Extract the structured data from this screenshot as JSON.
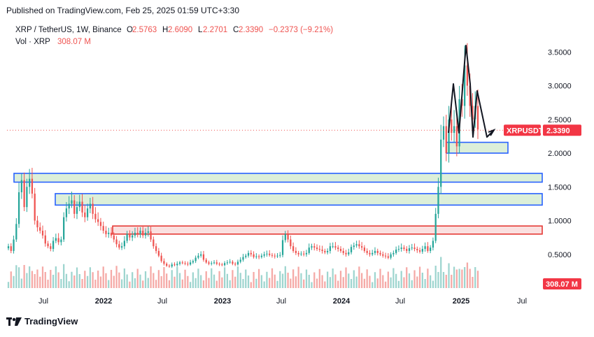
{
  "header": {
    "published": "Published on TradingView.com, Feb 25, 2025 01:59 UTC+3:30"
  },
  "legend": {
    "symbol": "XRP / TetherUS, 1W, Binance",
    "o_label": "O",
    "o_value": "2.5763",
    "h_label": "H",
    "h_value": "2.6090",
    "l_label": "L",
    "l_value": "2.2701",
    "c_label": "C",
    "c_value": "2.3390",
    "change": "−0.2373 (−9.21%)",
    "vol_label": "Vol · XRP",
    "vol_value": "308.07 M"
  },
  "footer": {
    "brand": "TradingView"
  },
  "colors": {
    "up": "#26a69a",
    "down": "#ef5350",
    "vol_up": "#9ed5cf",
    "vol_down": "#f5a9a6",
    "zone_fill": "#d6ecd2",
    "zone_border": "#2962ff",
    "red_zone_fill": "#f9dada",
    "red_zone_border": "#e53935",
    "price_label_bg": "#f23645"
  },
  "chart_data": {
    "type": "candlestick",
    "y_axis_ticks": [
      "3.5000",
      "3.0000",
      "2.5000",
      "2.0000",
      "1.5000",
      "1.0000",
      "0.5000"
    ],
    "x_axis_ticks": [
      "Jul",
      "2022",
      "Jul",
      "2023",
      "Jul",
      "2024",
      "Jul",
      "2025",
      "Jul"
    ],
    "ylim": [
      0,
      3.9
    ],
    "last_price": {
      "symbol": "XRPUSDT",
      "value": "2.3390"
    },
    "last_volume": "308.07 M",
    "support_zones": [
      {
        "low": 1.57,
        "high": 1.7,
        "style": "green"
      },
      {
        "low": 1.23,
        "high": 1.4,
        "style": "green"
      },
      {
        "low": 2.0,
        "high": 2.16,
        "style": "green"
      },
      {
        "low": 0.8,
        "high": 0.92,
        "style": "red"
      }
    ],
    "price_path_weekly_close": [
      0.62,
      0.55,
      0.72,
      0.95,
      1.42,
      1.6,
      1.2,
      1.5,
      1.62,
      1.4,
      1.0,
      0.9,
      0.85,
      0.78,
      0.66,
      0.62,
      0.58,
      0.7,
      0.74,
      0.68,
      0.72,
      1.05,
      1.18,
      1.25,
      1.3,
      1.1,
      1.2,
      1.28,
      1.12,
      1.05,
      1.18,
      1.25,
      1.1,
      1.02,
      0.98,
      0.92,
      0.85,
      0.8,
      0.82,
      0.78,
      0.72,
      0.65,
      0.6,
      0.62,
      0.7,
      0.8,
      0.75,
      0.78,
      0.82,
      0.8,
      0.85,
      0.78,
      0.82,
      0.84,
      0.72,
      0.62,
      0.55,
      0.48,
      0.4,
      0.36,
      0.33,
      0.32,
      0.35,
      0.34,
      0.36,
      0.38,
      0.37,
      0.36,
      0.35,
      0.38,
      0.4,
      0.45,
      0.48,
      0.5,
      0.42,
      0.38,
      0.36,
      0.37,
      0.38,
      0.36,
      0.35,
      0.34,
      0.37,
      0.38,
      0.39,
      0.36,
      0.35,
      0.39,
      0.42,
      0.46,
      0.48,
      0.52,
      0.5,
      0.46,
      0.47,
      0.46,
      0.48,
      0.5,
      0.51,
      0.49,
      0.48,
      0.47,
      0.48,
      0.49,
      0.71,
      0.8,
      0.72,
      0.62,
      0.55,
      0.52,
      0.5,
      0.51,
      0.5,
      0.52,
      0.6,
      0.62,
      0.6,
      0.58,
      0.57,
      0.55,
      0.53,
      0.55,
      0.62,
      0.62,
      0.6,
      0.58,
      0.55,
      0.52,
      0.5,
      0.53,
      0.61,
      0.63,
      0.65,
      0.62,
      0.6,
      0.55,
      0.52,
      0.5,
      0.52,
      0.55,
      0.52,
      0.5,
      0.48,
      0.47,
      0.45,
      0.5,
      0.52,
      0.57,
      0.58,
      0.6,
      0.58,
      0.55,
      0.59,
      0.6,
      0.58,
      0.56,
      0.54,
      0.58,
      0.62,
      0.55,
      0.6,
      0.7,
      1.1,
      1.5,
      2.2,
      2.4,
      2.0,
      2.5,
      2.3,
      2.4,
      2.1,
      2.8,
      2.7,
      3.3,
      3.0,
      2.7,
      2.5,
      2.7,
      2.35
    ],
    "annotation": "Hand-drawn black zig-zag pattern near the 2025 peak ending with an arrow pointing toward the 2.0–2.16 zone"
  }
}
